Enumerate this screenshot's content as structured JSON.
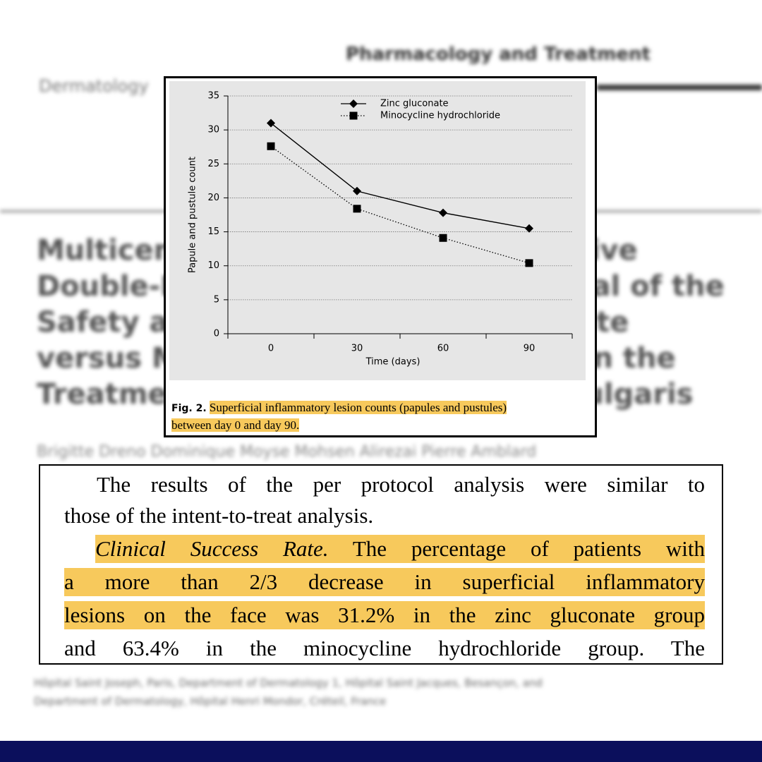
{
  "background": {
    "section": "Pharmacology and Treatment",
    "journal": "Dermatology",
    "title_lines": [
      "Multicenter Randomized Comparative",
      "Double-Blind Controlled Clinical Trial of the",
      "Safety and Efficacy of Zinc Gluconate",
      "versus Minocycline Hydrochloride in the",
      "Treatment of Inflammatory Acne Vulgaris"
    ],
    "authors": "Brigitte Dreno Dominique Moyse Mohsen Alirezai Pierre Amblard",
    "affiliation_lines": [
      "Hôpital Saint Joseph, Paris, Department of Dermatology 1, Hôpital Saint Jacques, Besançon, and",
      "Department of Dermatology, Hôpital Henri Mondor, Créteil, France"
    ]
  },
  "chart_data": {
    "type": "line",
    "categories": [
      "0",
      "30",
      "60",
      "90"
    ],
    "series": [
      {
        "name": "Zinc gluconate",
        "color": "#000000",
        "marker": "diamond",
        "line_style": "solid",
        "values": [
          31,
          21,
          17.8,
          15.5
        ]
      },
      {
        "name": "Minocycline hydrochloride",
        "color": "#000000",
        "marker": "square",
        "line_style": "dotted",
        "values": [
          27.6,
          18.4,
          14.1,
          10.4
        ]
      }
    ],
    "x_label": "Time (days)",
    "y_label": "Papule and pustule count",
    "ylim": [
      0,
      35
    ],
    "yticks": [
      0,
      5,
      10,
      15,
      20,
      25,
      30,
      35
    ],
    "grid": true,
    "legend": "top"
  },
  "caption": {
    "label": "Fig. 2.",
    "lines": [
      "Superficial inflammatory lesion counts (papules and pustules)",
      "between day 0 and day 90."
    ]
  },
  "excerpt": {
    "p1_lines": [
      "The results of the per protocol analysis were similar to",
      "those of the intent-to-treat analysis."
    ],
    "heading": "Clinical Success Rate.",
    "p2_lines": [
      "The percentage of patients with",
      "a more than 2/3 decrease in superficial inflammatory",
      "lesions on the face was 31.2% in the zinc gluconate group",
      "and 63.4% in the minocycline hydrochloride group. The"
    ]
  }
}
